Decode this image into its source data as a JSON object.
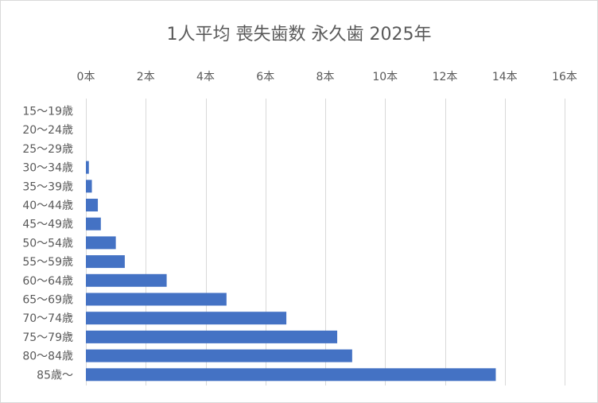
{
  "chart_data": {
    "type": "bar",
    "orientation": "horizontal",
    "title": "1人平均 喪失歯数 永久歯 2025年",
    "xlabel": "",
    "ylabel": "",
    "xlim": [
      0,
      16
    ],
    "x_ticks": [
      0,
      2,
      4,
      6,
      8,
      10,
      12,
      14,
      16
    ],
    "x_tick_labels": [
      "0本",
      "2本",
      "4本",
      "6本",
      "8本",
      "10本",
      "12本",
      "14本",
      "16本"
    ],
    "axis_position": "top",
    "grid": true,
    "legend": "none",
    "color": "#4472c4",
    "categories": [
      "15～19歳",
      "20～24歳",
      "25～29歳",
      "30～34歳",
      "35～39歳",
      "40～44歳",
      "45～49歳",
      "50～54歳",
      "55～59歳",
      "60～64歳",
      "65～69歳",
      "70～74歳",
      "75～79歳",
      "80～84歳",
      "85歳～"
    ],
    "values": [
      0,
      0,
      0,
      0.1,
      0.2,
      0.4,
      0.5,
      1.0,
      1.3,
      2.7,
      4.7,
      6.7,
      8.4,
      8.9,
      13.7
    ]
  }
}
